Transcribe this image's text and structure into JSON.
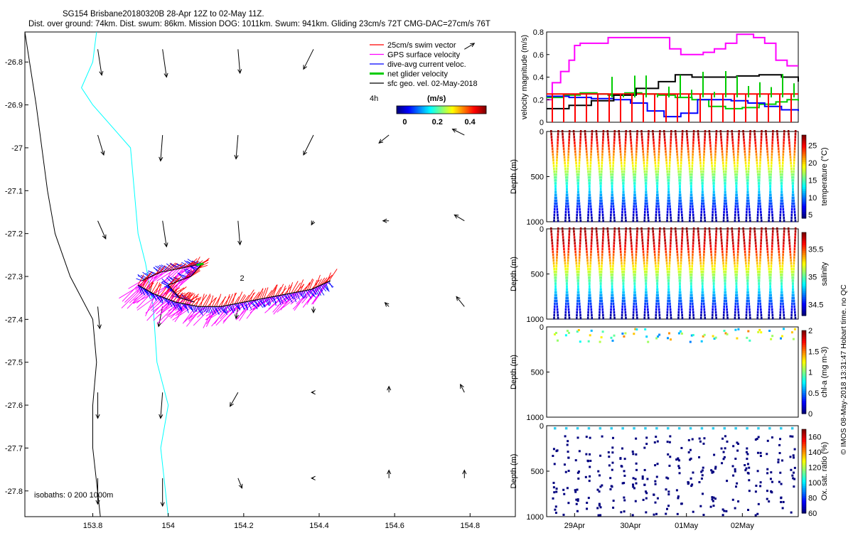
{
  "header": {
    "title": "SG154 Brisbane20180320B 28-Apr 12Z to 02-May 11Z.",
    "subtitle": "Dist. over ground: 74km. Dist. swum: 86km. Mission DOG: 1011km. Swum: 941km. Gliding 23cm/s 72T CMG-DAC=27cm/s 76T"
  },
  "watermark": "© IMOS 08-May-2018 13:31:47 Hobart time. no QC",
  "colors": {
    "swim": "#ff0000",
    "gps": "#ff00ff",
    "current": "#0000ff",
    "glider": "#00cc00",
    "geo": "#000000",
    "isobath200": "#000000",
    "isobath1000": "#00ffff",
    "oxygen": "#00007f",
    "oxygen_surface": "#33ccee"
  },
  "chart_data": [
    {
      "id": "map",
      "type": "scatter",
      "xlim": [
        153.62,
        154.92
      ],
      "ylim": [
        -27.86,
        -26.73
      ],
      "x_ticks": [
        "153.8",
        "154",
        "154.2",
        "154.4",
        "154.6",
        "154.8"
      ],
      "x_tick_values": [
        153.8,
        154.0,
        154.2,
        154.4,
        154.6,
        154.8
      ],
      "y_ticks": [
        "-26.8",
        "-26.9",
        "-27",
        "-27.1",
        "-27.2",
        "-27.3",
        "-27.4",
        "-27.5",
        "-27.6",
        "-27.7",
        "-27.8"
      ],
      "y_tick_values": [
        -26.8,
        -26.9,
        -27.0,
        -27.1,
        -27.2,
        -27.3,
        -27.4,
        -27.5,
        -27.6,
        -27.7,
        -27.8
      ],
      "legend": {
        "placement": "top-right",
        "entries": [
          {
            "label": "25cm/s swim vector",
            "color": "#ff0000"
          },
          {
            "label": "GPS surface velocity",
            "color": "#ff00ff"
          },
          {
            "label": "dive-avg current veloc.",
            "color": "#0000ff"
          },
          {
            "label": "net glider velocity",
            "color": "#00cc00"
          },
          {
            "label": "sfc geo. vel. 02-May-2018",
            "color": "#000000"
          }
        ],
        "time_step": "4h",
        "colorbar_label": "(m/s)",
        "colorbar_ticks": [
          "0",
          "0.2",
          "0.4"
        ],
        "colorbar_tick_values": [
          0,
          0.2,
          0.4
        ],
        "colorbar_range": [
          -0.05,
          0.5
        ]
      },
      "isobath_label": "isobaths: 0   200  1000m",
      "annotation": {
        "text": "2",
        "lon": 154.19,
        "lat": -27.31
      },
      "track": [
        [
          153.92,
          -27.32
        ],
        [
          153.96,
          -27.34
        ],
        [
          154.02,
          -27.36
        ],
        [
          154.08,
          -27.37
        ],
        [
          154.14,
          -27.37
        ],
        [
          154.2,
          -27.36
        ],
        [
          154.26,
          -27.35
        ],
        [
          154.32,
          -27.34
        ],
        [
          154.38,
          -27.33
        ],
        [
          154.43,
          -27.31
        ]
      ],
      "loop_track": [
        [
          153.93,
          -27.31
        ],
        [
          153.98,
          -27.29
        ],
        [
          154.04,
          -27.28
        ],
        [
          154.09,
          -27.27
        ],
        [
          154.06,
          -27.3
        ],
        [
          154.0,
          -27.32
        ],
        [
          154.03,
          -27.35
        ],
        [
          154.07,
          -27.36
        ]
      ],
      "isobath_200": [
        [
          153.62,
          -26.73
        ],
        [
          153.65,
          -26.9
        ],
        [
          153.68,
          -27.1
        ],
        [
          153.7,
          -27.2
        ],
        [
          153.74,
          -27.3
        ],
        [
          153.8,
          -27.4
        ],
        [
          153.81,
          -27.5
        ],
        [
          153.8,
          -27.6
        ],
        [
          153.8,
          -27.7
        ],
        [
          153.82,
          -27.86
        ]
      ],
      "isobath_1000": [
        [
          153.81,
          -26.73
        ],
        [
          153.8,
          -26.8
        ],
        [
          153.77,
          -26.86
        ],
        [
          153.8,
          -26.9
        ],
        [
          153.86,
          -26.96
        ],
        [
          153.9,
          -27.0
        ],
        [
          153.91,
          -27.1
        ],
        [
          153.92,
          -27.2
        ],
        [
          153.94,
          -27.27
        ],
        [
          153.96,
          -27.37
        ],
        [
          153.97,
          -27.5
        ],
        [
          154.0,
          -27.6
        ],
        [
          153.98,
          -27.7
        ],
        [
          154.0,
          -27.86
        ]
      ],
      "geo_vectors": {
        "lons": [
          153.8,
          154.0,
          154.2,
          154.4,
          154.6,
          154.8
        ],
        "lats": [
          -26.82,
          -27.02,
          -27.22,
          -27.42,
          -27.62,
          -27.82
        ],
        "u": [
          [
            0.02,
            0.02,
            0.01,
            -0.05,
            0,
            0.05
          ],
          [
            0.03,
            -0.01,
            -0.01,
            -0.05,
            -0.05,
            -0.06
          ],
          [
            0.04,
            0.02,
            0.01,
            -0.01,
            -0.03,
            -0.05
          ],
          [
            0.01,
            -0.02,
            -0.01,
            0,
            -0.02,
            -0.04
          ],
          [
            0.0,
            -0.01,
            -0.04,
            -0.01,
            0.0,
            -0.02
          ],
          [
            0.0,
            0.0,
            0.02,
            -0.01,
            0.0,
            0.0
          ]
        ],
        "v": [
          [
            0.13,
            0.14,
            0.12,
            0.1,
            0,
            -0.03
          ],
          [
            0.1,
            0.13,
            0.12,
            0.1,
            0.04,
            -0.03
          ],
          [
            0.09,
            0.13,
            0.12,
            0.02,
            0.0,
            -0.03
          ],
          [
            0.11,
            0.1,
            0.06,
            0.03,
            -0.02,
            -0.05
          ],
          [
            0.13,
            0.13,
            0.07,
            0.0,
            -0.03,
            -0.04
          ],
          [
            0.13,
            0.14,
            0.05,
            0.0,
            -0.04,
            -0.04
          ]
        ]
      }
    },
    {
      "id": "velocity",
      "type": "line",
      "ylabel": "velocity magnitude (m/s)",
      "ylim": [
        0,
        0.8
      ],
      "y_ticks": [
        "0",
        "0.2",
        "0.4",
        "0.6",
        "0.8"
      ],
      "y_tick_values": [
        0,
        0.2,
        0.4,
        0.6,
        0.8
      ],
      "xlim": [
        28.5,
        33.0
      ],
      "series": [
        {
          "color": "#ff00ff",
          "x": [
            28.5,
            28.6,
            28.75,
            28.9,
            29.0,
            29.1,
            29.45,
            29.6,
            29.9,
            30.2,
            30.6,
            30.7,
            30.9,
            31.3,
            31.5,
            31.7,
            31.9,
            32.2,
            32.4,
            32.6,
            32.8,
            33.0
          ],
          "y": [
            0.2,
            0.35,
            0.45,
            0.55,
            0.68,
            0.7,
            0.7,
            0.75,
            0.75,
            0.75,
            0.75,
            0.65,
            0.6,
            0.62,
            0.65,
            0.7,
            0.78,
            0.75,
            0.7,
            0.55,
            0.5,
            0.5
          ]
        },
        {
          "color": "#00cc00",
          "x": [
            28.5,
            28.8,
            29.1,
            29.4,
            29.6,
            29.9,
            30.2,
            30.5,
            30.8,
            31.1,
            31.4,
            31.7,
            32.0,
            32.3,
            32.6,
            32.8,
            33.0
          ],
          "y": [
            0.22,
            0.24,
            0.26,
            0.25,
            0.24,
            0.26,
            0.25,
            0.24,
            0.22,
            0.2,
            0.14,
            0.12,
            0.13,
            0.16,
            0.18,
            0.2,
            0.19
          ]
        },
        {
          "color": "#ff0000",
          "x": [
            28.5,
            33.0
          ],
          "y": [
            0.25,
            0.25
          ]
        },
        {
          "color": "#0000ff",
          "x": [
            28.5,
            28.9,
            29.3,
            29.7,
            30.0,
            30.3,
            30.6,
            30.9,
            31.2,
            31.5,
            31.8,
            32.1,
            32.4,
            32.7,
            33.0
          ],
          "y": [
            0.23,
            0.22,
            0.21,
            0.2,
            0.17,
            0.1,
            0.05,
            0.08,
            0.2,
            0.2,
            0.19,
            0.17,
            0.14,
            0.11,
            0.1
          ]
        },
        {
          "color": "#000000",
          "x": [
            28.5,
            28.9,
            29.3,
            29.7,
            30.1,
            30.5,
            30.8,
            31.1,
            31.5,
            31.9,
            32.3,
            32.7,
            33.0
          ],
          "y": [
            0.12,
            0.15,
            0.19,
            0.24,
            0.3,
            0.36,
            0.42,
            0.4,
            0.4,
            0.41,
            0.42,
            0.4,
            0.36
          ]
        }
      ]
    },
    {
      "id": "temperature",
      "type": "scatter",
      "ylabel": "Depth (m)",
      "ylim": [
        0,
        1000
      ],
      "y_ticks": [
        "0",
        "500",
        "1000"
      ],
      "y_tick_values": [
        0,
        500,
        1000
      ],
      "colorbar_label": "temperature (°C)",
      "colorbar_ticks": [
        "5",
        "10",
        "15",
        "20",
        "25"
      ],
      "colorbar_tick_values": [
        5,
        10,
        15,
        20,
        25
      ],
      "colorbar_range": [
        4,
        28
      ],
      "n_dives": 22
    },
    {
      "id": "salinity",
      "type": "scatter",
      "ylabel": "Depth (m)",
      "ylim": [
        0,
        1000
      ],
      "y_ticks": [
        "0",
        "500",
        "1000"
      ],
      "y_tick_values": [
        0,
        500,
        1000
      ],
      "colorbar_label": "salinity",
      "colorbar_ticks": [
        "34.5",
        "35",
        "35.5"
      ],
      "colorbar_tick_values": [
        34.5,
        35,
        35.5
      ],
      "colorbar_range": [
        34.3,
        35.8
      ],
      "n_dives": 22
    },
    {
      "id": "chla",
      "type": "scatter",
      "ylabel": "Depth (m)",
      "ylim": [
        0,
        1000
      ],
      "y_ticks": [
        "0",
        "500",
        "1000"
      ],
      "y_tick_values": [
        0,
        500,
        1000
      ],
      "colorbar_label": "chl-a (mg m-3)",
      "colorbar_ticks": [
        "0",
        "0.5",
        "1",
        "1.5",
        "2"
      ],
      "colorbar_tick_values": [
        0,
        0.5,
        1,
        1.5,
        2
      ],
      "colorbar_range": [
        0,
        2
      ]
    },
    {
      "id": "oxygen",
      "type": "scatter",
      "ylabel": "Depth (m)",
      "ylim": [
        0,
        1000
      ],
      "y_ticks": [
        "0",
        "500",
        "1000"
      ],
      "y_tick_values": [
        0,
        500,
        1000
      ],
      "colorbar_label": "Ox. sat. ratio (%)",
      "colorbar_ticks": [
        "60",
        "80",
        "100",
        "120",
        "140",
        "160"
      ],
      "colorbar_tick_values": [
        60,
        80,
        100,
        120,
        140,
        160
      ],
      "colorbar_range": [
        60,
        170
      ],
      "x_ticks": [
        "29Apr",
        "30Apr",
        "01May",
        "02May"
      ],
      "x_tick_values": [
        29,
        30,
        31,
        32
      ]
    }
  ]
}
